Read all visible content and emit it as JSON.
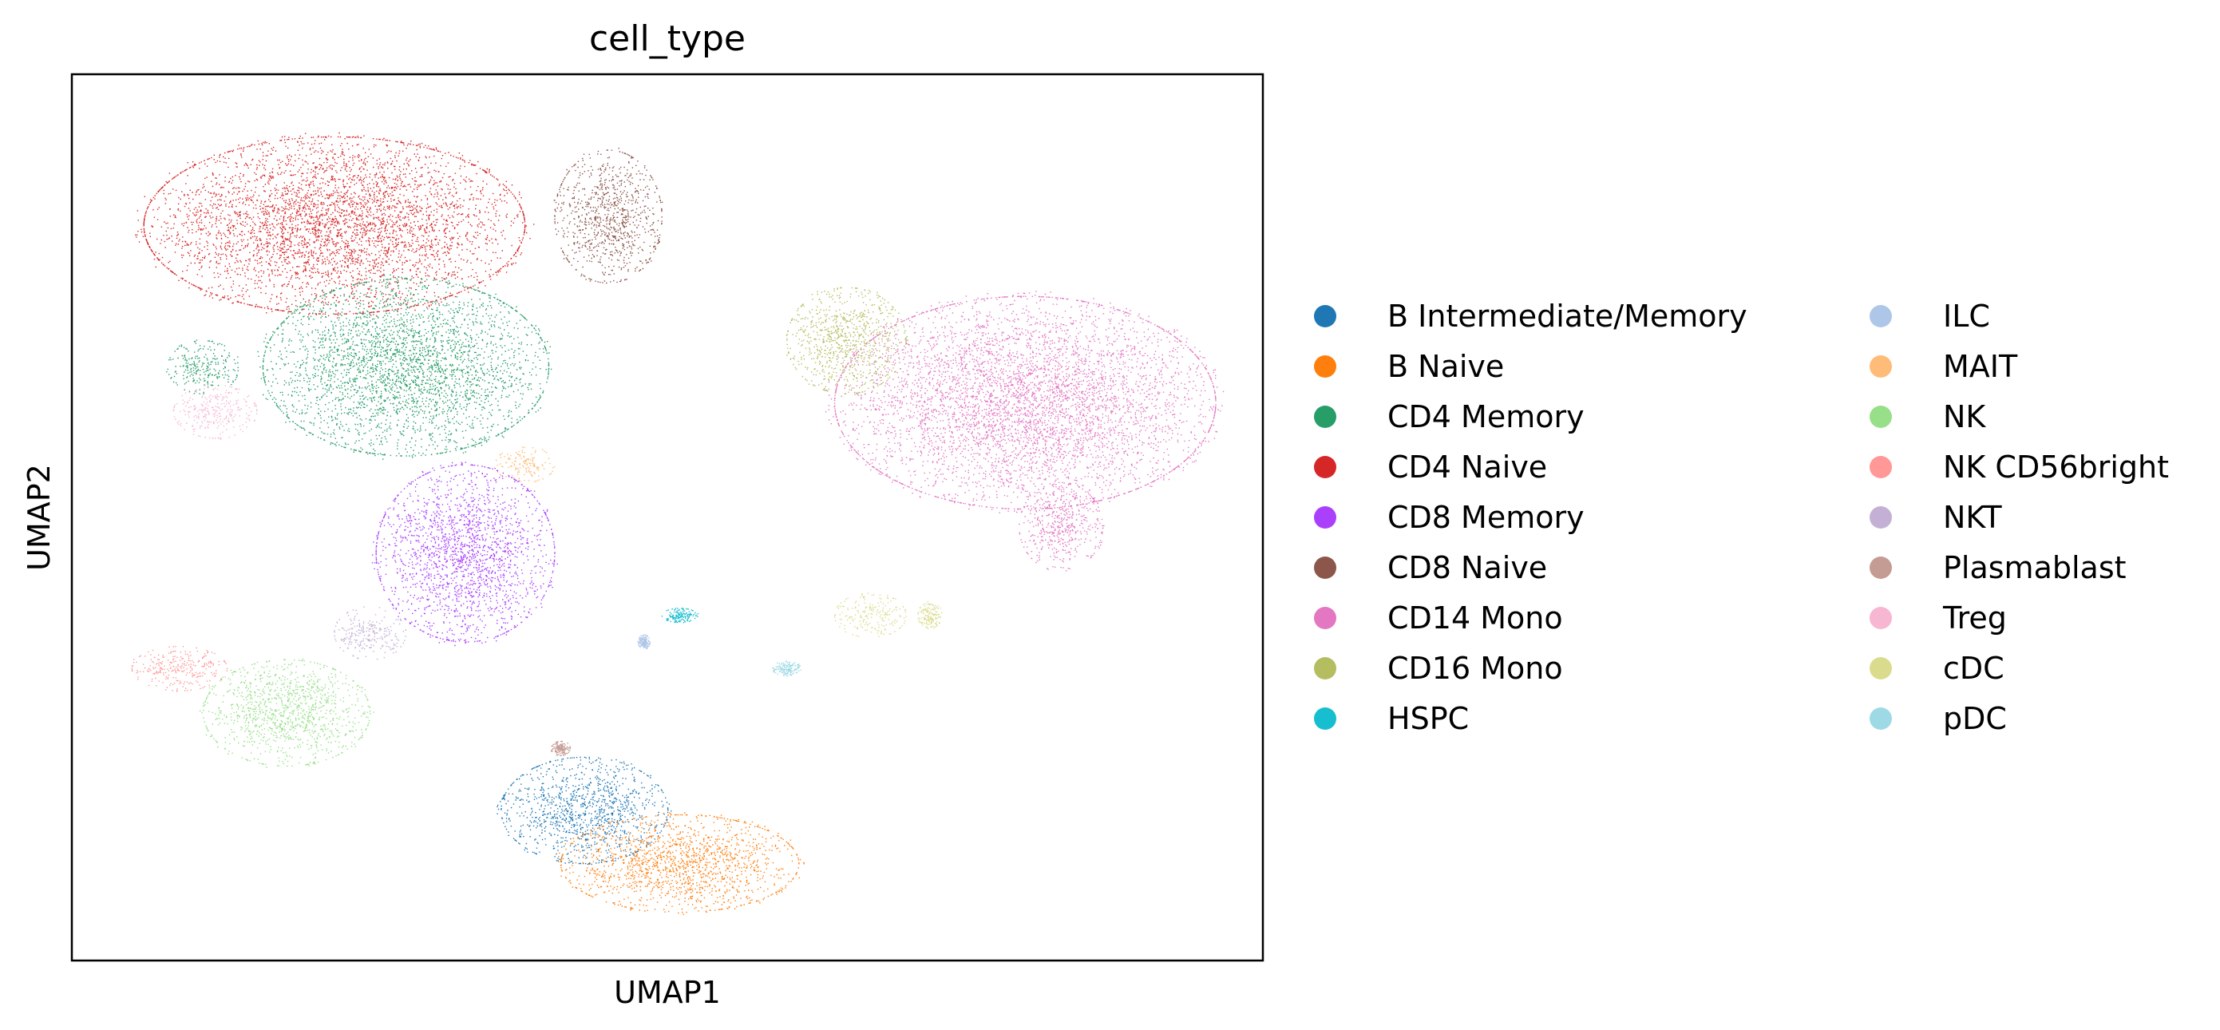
{
  "chart_data": {
    "type": "scatter",
    "title": "cell_type",
    "xlabel": "UMAP1",
    "ylabel": "UMAP2",
    "grid": false,
    "ticks_visible": false,
    "legend_placement": "right",
    "legend_columns": 2,
    "categories": [
      {
        "name": "B Intermediate/Memory",
        "color": "#1f77b4"
      },
      {
        "name": "B Naive",
        "color": "#ff7f0e"
      },
      {
        "name": "CD4 Memory",
        "color": "#279e68"
      },
      {
        "name": "CD4 Naive",
        "color": "#d62728"
      },
      {
        "name": "CD8 Memory",
        "color": "#aa40fc"
      },
      {
        "name": "CD8 Naive",
        "color": "#8c564b"
      },
      {
        "name": "CD14 Mono",
        "color": "#e377c2"
      },
      {
        "name": "CD16 Mono",
        "color": "#b5bd61"
      },
      {
        "name": "HSPC",
        "color": "#17becf"
      },
      {
        "name": "ILC",
        "color": "#aec7e8"
      },
      {
        "name": "MAIT",
        "color": "#ffbb78"
      },
      {
        "name": "NK",
        "color": "#98df8a"
      },
      {
        "name": "NK CD56bright",
        "color": "#ff9896"
      },
      {
        "name": "NKT",
        "color": "#c5b0d5"
      },
      {
        "name": "Plasmablast",
        "color": "#c49c94"
      },
      {
        "name": "Treg",
        "color": "#f7b6d2"
      },
      {
        "name": "cDC",
        "color": "#dbdb8d"
      },
      {
        "name": "pDC",
        "color": "#9edae5"
      }
    ],
    "clusters": [
      {
        "category": "CD4 Naive",
        "cx": 0.22,
        "cy": 0.83,
        "rx": 0.16,
        "ry": 0.1
      },
      {
        "category": "CD8 Naive",
        "cx": 0.45,
        "cy": 0.84,
        "rx": 0.045,
        "ry": 0.075
      },
      {
        "category": "CD4 Memory",
        "cx": 0.28,
        "cy": 0.67,
        "rx": 0.12,
        "ry": 0.1
      },
      {
        "category": "CD4 Memory",
        "cx": 0.11,
        "cy": 0.67,
        "rx": 0.03,
        "ry": 0.03
      },
      {
        "category": "Treg",
        "cx": 0.12,
        "cy": 0.62,
        "rx": 0.035,
        "ry": 0.03
      },
      {
        "category": "MAIT",
        "cx": 0.38,
        "cy": 0.56,
        "rx": 0.025,
        "ry": 0.02
      },
      {
        "category": "CD8 Memory",
        "cx": 0.33,
        "cy": 0.46,
        "rx": 0.075,
        "ry": 0.1
      },
      {
        "category": "NK",
        "cx": 0.18,
        "cy": 0.28,
        "rx": 0.07,
        "ry": 0.06
      },
      {
        "category": "NK CD56bright",
        "cx": 0.09,
        "cy": 0.33,
        "rx": 0.04,
        "ry": 0.025
      },
      {
        "category": "CD14 Mono",
        "cx": 0.8,
        "cy": 0.63,
        "rx": 0.16,
        "ry": 0.12
      },
      {
        "category": "CD14 Mono",
        "cx": 0.83,
        "cy": 0.49,
        "rx": 0.035,
        "ry": 0.05
      },
      {
        "category": "CD16 Mono",
        "cx": 0.65,
        "cy": 0.7,
        "rx": 0.05,
        "ry": 0.06
      },
      {
        "category": "cDC",
        "cx": 0.67,
        "cy": 0.39,
        "rx": 0.03,
        "ry": 0.025
      },
      {
        "category": "cDC",
        "cx": 0.72,
        "cy": 0.39,
        "rx": 0.01,
        "ry": 0.015
      },
      {
        "category": "HSPC",
        "cx": 0.51,
        "cy": 0.39,
        "rx": 0.015,
        "ry": 0.008
      },
      {
        "category": "pDC",
        "cx": 0.6,
        "cy": 0.33,
        "rx": 0.012,
        "ry": 0.008
      },
      {
        "category": "ILC",
        "cx": 0.48,
        "cy": 0.36,
        "rx": 0.005,
        "ry": 0.008
      },
      {
        "category": "Plasmablast",
        "cx": 0.41,
        "cy": 0.24,
        "rx": 0.008,
        "ry": 0.008
      },
      {
        "category": "B Intermediate/Memory",
        "cx": 0.43,
        "cy": 0.17,
        "rx": 0.07,
        "ry": 0.06
      },
      {
        "category": "B Naive",
        "cx": 0.51,
        "cy": 0.11,
        "rx": 0.1,
        "ry": 0.055
      },
      {
        "category": "NKT",
        "cx": 0.25,
        "cy": 0.37,
        "rx": 0.03,
        "ry": 0.03
      }
    ]
  }
}
